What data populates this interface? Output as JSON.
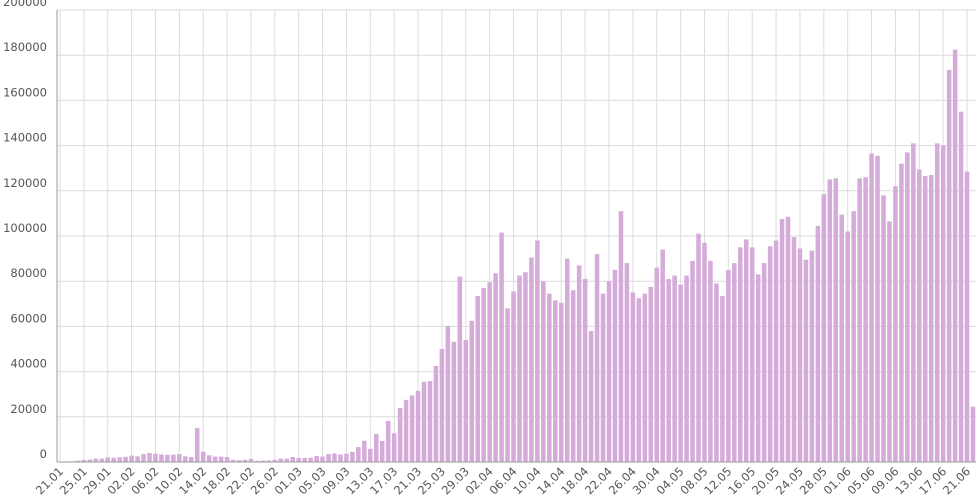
{
  "chart_data": {
    "type": "bar",
    "title": "",
    "xlabel": "",
    "ylabel": "",
    "ylim": [
      0,
      200000
    ],
    "yticks": [
      0,
      20000,
      40000,
      60000,
      80000,
      100000,
      120000,
      140000,
      160000,
      180000,
      200000
    ],
    "grid": true,
    "bar_color": "#d5acd9",
    "categories": [
      "21.01",
      "22.01",
      "23.01",
      "24.01",
      "25.01",
      "26.01",
      "27.01",
      "28.01",
      "29.01",
      "30.01",
      "31.01",
      "01.02",
      "02.02",
      "03.02",
      "04.02",
      "05.02",
      "06.02",
      "07.02",
      "08.02",
      "09.02",
      "10.02",
      "11.02",
      "12.02",
      "13.02",
      "14.02",
      "15.02",
      "16.02",
      "17.02",
      "18.02",
      "19.02",
      "20.02",
      "21.02",
      "22.02",
      "23.02",
      "24.02",
      "25.02",
      "26.02",
      "27.02",
      "28.02",
      "29.02",
      "01.03",
      "02.03",
      "03.03",
      "04.03",
      "05.03",
      "06.03",
      "07.03",
      "08.03",
      "09.03",
      "10.03",
      "11.03",
      "12.03",
      "13.03",
      "14.03",
      "15.03",
      "16.03",
      "17.03",
      "18.03",
      "19.03",
      "20.03",
      "21.03",
      "22.03",
      "23.03",
      "24.03",
      "25.03",
      "26.03",
      "27.03",
      "28.03",
      "29.03",
      "30.03",
      "31.03",
      "01.04",
      "02.04",
      "03.04",
      "04.04",
      "05.04",
      "06.04",
      "07.04",
      "08.04",
      "09.04",
      "10.04",
      "11.04",
      "12.04",
      "13.04",
      "14.04",
      "15.04",
      "16.04",
      "17.04",
      "18.04",
      "19.04",
      "20.04",
      "21.04",
      "22.04",
      "23.04",
      "24.04",
      "25.04",
      "26.04",
      "27.04",
      "28.04",
      "29.04",
      "30.04",
      "01.05",
      "02.05",
      "03.05",
      "04.05",
      "05.05",
      "06.05",
      "07.05",
      "08.05",
      "09.05",
      "10.05",
      "11.05",
      "12.05",
      "13.05",
      "14.05",
      "15.05",
      "16.05",
      "17.05",
      "18.05",
      "19.05",
      "20.05",
      "21.05",
      "22.05",
      "23.05",
      "24.05",
      "25.05",
      "26.05",
      "27.05",
      "28.05",
      "29.05",
      "30.05",
      "31.05",
      "01.06",
      "02.06",
      "03.06",
      "04.06",
      "05.06",
      "06.06",
      "07.06",
      "08.06",
      "09.06",
      "10.06",
      "11.06",
      "12.06",
      "13.06",
      "14.06",
      "15.06",
      "16.06",
      "17.06",
      "18.06",
      "19.06",
      "20.06",
      "21.06",
      "22.06"
    ],
    "values": [
      0,
      0,
      300,
      600,
      900,
      1100,
      1500,
      1500,
      2000,
      1900,
      2100,
      2300,
      2800,
      2500,
      3500,
      4000,
      3700,
      3300,
      3200,
      3300,
      3500,
      2500,
      2200,
      15000,
      4500,
      3000,
      2400,
      2400,
      2200,
      1000,
      800,
      1000,
      1400,
      500,
      600,
      700,
      1000,
      1500,
      1500,
      2200,
      1800,
      1800,
      1900,
      2700,
      2400,
      3500,
      3800,
      3300,
      3700,
      4500,
      6600,
      9400,
      5800,
      12400,
      9300,
      18200,
      12700,
      23900,
      27500,
      29500,
      31500,
      35500,
      35800,
      42500,
      50000,
      60200,
      53200,
      82000,
      54000,
      62500,
      73500,
      77000,
      79500,
      83500,
      101500,
      68000,
      75500,
      82500,
      84000,
      90500,
      98000,
      80000,
      74500,
      71500,
      70500,
      90000,
      76000,
      87000,
      81000,
      58000,
      92000,
      74500,
      80000,
      85000,
      111000,
      88000,
      75000,
      72500,
      74500,
      77500,
      86000,
      94000,
      81000,
      82500,
      78500,
      82500,
      89000,
      101000,
      97000,
      89000,
      79000,
      73500,
      85000,
      88000,
      95000,
      98500,
      95000,
      83000,
      88000,
      95500,
      98000,
      107500,
      108500,
      99500,
      94500,
      89500,
      93500,
      104500,
      118500,
      125000,
      125500,
      109500,
      102000,
      111000,
      125500,
      126000,
      136500,
      135500,
      118000,
      106500,
      122000,
      132000,
      137000,
      141000,
      129500,
      126500,
      127000,
      141000,
      140000,
      173500,
      182500,
      155000,
      128500,
      24500
    ]
  }
}
